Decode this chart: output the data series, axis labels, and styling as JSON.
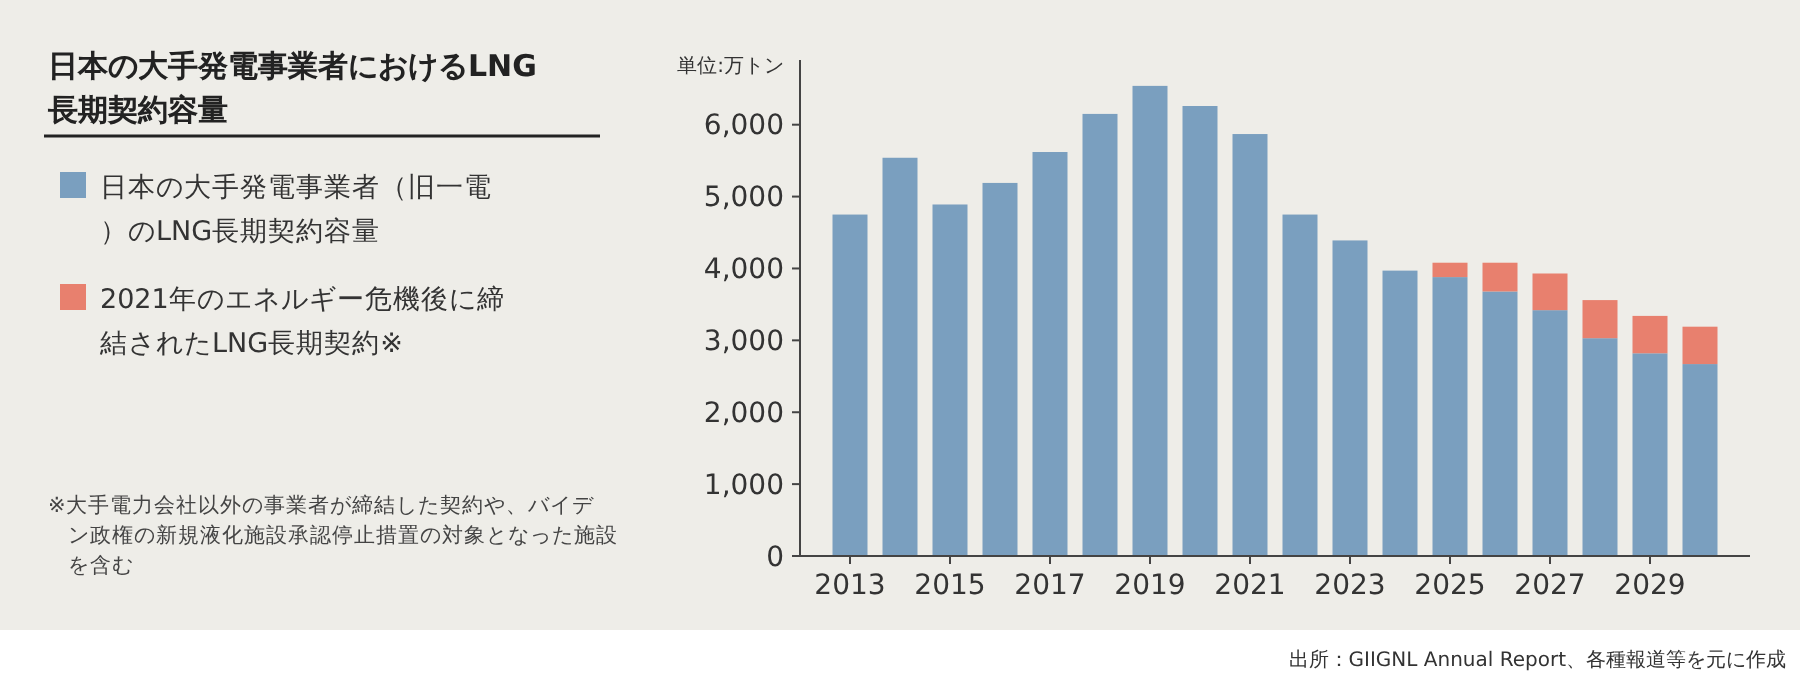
{
  "chart_data": {
    "type": "bar",
    "stacked": true,
    "title": "日本の大手発電事業者におけるLNG長期契約容量",
    "ylabel": "単位:万トン",
    "categories": [
      "2013",
      null,
      "2015",
      null,
      "2017",
      null,
      "2019",
      null,
      "2021",
      null,
      "2023",
      null,
      "2025",
      null,
      "2027",
      null,
      "2029",
      null
    ],
    "series": [
      {
        "name": "日本の大手発電事業者（旧一電）のLNG長期契約容量",
        "color": "#7a9fbf",
        "values": [
          4750,
          5540,
          4890,
          5190,
          5620,
          6150,
          6540,
          6260,
          5870,
          4750,
          4390,
          3970,
          3880,
          3680,
          3420,
          3030,
          2820,
          2670
        ]
      },
      {
        "name": "2021年のエネルギー危機後に締結されたLNG長期契約※",
        "color": "#e8806e",
        "values": [
          null,
          null,
          null,
          null,
          null,
          null,
          null,
          null,
          null,
          null,
          null,
          null,
          200,
          400,
          510,
          530,
          520,
          520
        ]
      }
    ],
    "ylim": [
      0,
      6900
    ],
    "yticks": [
      {
        "value": 0,
        "label": "0"
      },
      {
        "value": 1000,
        "label": "1,000"
      },
      {
        "value": 2000,
        "label": "2,000"
      },
      {
        "value": 3000,
        "label": "3,000"
      },
      {
        "value": 4000,
        "label": "4,000"
      },
      {
        "value": 5000,
        "label": "5,000"
      },
      {
        "value": 6000,
        "label": "6,000"
      }
    ],
    "grid": false,
    "legend": "left",
    "annotations": [
      "※大手電力会社以外の事業者が締結した契約や、バイデン政権の新規液化施設承認停止措置の対象となった施設を含む",
      "出所：GIIGNL Annual Report、各種報道等を元に作成"
    ]
  }
}
